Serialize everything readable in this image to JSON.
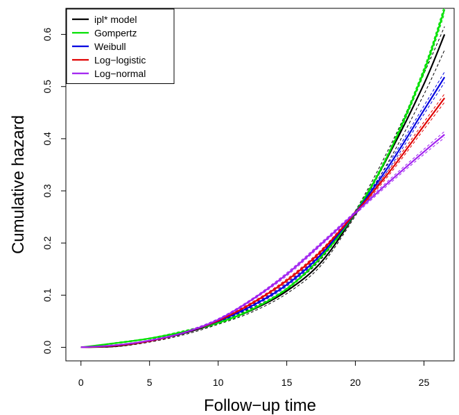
{
  "chart_data": {
    "type": "line",
    "title": "",
    "xlabel": "Follow−up time",
    "ylabel": "Cumulative hazard",
    "xlim": [
      -1.1,
      27.2
    ],
    "ylim": [
      -0.026,
      0.65
    ],
    "xticks": [
      0,
      5,
      10,
      15,
      20,
      25
    ],
    "yticks": [
      0.0,
      0.1,
      0.2,
      0.3,
      0.4,
      0.5,
      0.6
    ],
    "ytick_labels": [
      "0.0",
      "0.1",
      "0.2",
      "0.3",
      "0.4",
      "0.5",
      "0.6"
    ],
    "grid": false,
    "legend_position": "top-left",
    "x": [
      0,
      2.5,
      5,
      7.5,
      10,
      12.5,
      15,
      17.5,
      20,
      22.5,
      25,
      26.5
    ],
    "series": [
      {
        "name": "ipl* model",
        "color": "#000000",
        "values": [
          0.0,
          0.002,
          0.012,
          0.027,
          0.047,
          0.072,
          0.108,
          0.163,
          0.257,
          0.372,
          0.505,
          0.6
        ],
        "ci_low": [
          0.0,
          0.001,
          0.01,
          0.024,
          0.044,
          0.068,
          0.103,
          0.157,
          0.252,
          0.36,
          0.485,
          0.57
        ],
        "ci_high": [
          0.0,
          0.003,
          0.014,
          0.03,
          0.05,
          0.076,
          0.113,
          0.169,
          0.262,
          0.384,
          0.525,
          0.615
        ]
      },
      {
        "name": "Gompertz",
        "color": "#00e000",
        "values": [
          0.0,
          0.008,
          0.017,
          0.03,
          0.047,
          0.073,
          0.112,
          0.173,
          0.258,
          0.375,
          0.53,
          0.648
        ],
        "ci_low": [
          0.0,
          0.007,
          0.016,
          0.028,
          0.045,
          0.071,
          0.11,
          0.171,
          0.255,
          0.371,
          0.524,
          0.64
        ],
        "ci_high": [
          0.0,
          0.009,
          0.018,
          0.032,
          0.049,
          0.075,
          0.114,
          0.175,
          0.261,
          0.379,
          0.536,
          0.656
        ]
      },
      {
        "name": "Weibull",
        "color": "#0000e0",
        "values": [
          0.0,
          0.003,
          0.012,
          0.028,
          0.05,
          0.08,
          0.12,
          0.178,
          0.258,
          0.35,
          0.455,
          0.518
        ],
        "ci_low": [
          0.0,
          0.002,
          0.011,
          0.026,
          0.048,
          0.078,
          0.117,
          0.175,
          0.255,
          0.344,
          0.447,
          0.508
        ],
        "ci_high": [
          0.0,
          0.004,
          0.013,
          0.03,
          0.052,
          0.082,
          0.123,
          0.181,
          0.261,
          0.356,
          0.463,
          0.528
        ]
      },
      {
        "name": "Log−logistic",
        "color": "#e00000",
        "values": [
          0.0,
          0.003,
          0.012,
          0.028,
          0.051,
          0.085,
          0.128,
          0.184,
          0.258,
          0.337,
          0.425,
          0.478
        ],
        "ci_low": [
          0.0,
          0.002,
          0.011,
          0.026,
          0.049,
          0.083,
          0.125,
          0.181,
          0.255,
          0.332,
          0.418,
          0.47
        ],
        "ci_high": [
          0.0,
          0.004,
          0.013,
          0.03,
          0.053,
          0.087,
          0.131,
          0.187,
          0.261,
          0.342,
          0.432,
          0.486
        ]
      },
      {
        "name": "Log−normal",
        "color": "#a020f0",
        "values": [
          0.0,
          0.004,
          0.013,
          0.028,
          0.053,
          0.092,
          0.14,
          0.198,
          0.258,
          0.318,
          0.375,
          0.408
        ],
        "ci_low": [
          0.0,
          0.003,
          0.012,
          0.026,
          0.051,
          0.09,
          0.137,
          0.195,
          0.255,
          0.314,
          0.37,
          0.402
        ],
        "ci_high": [
          0.0,
          0.005,
          0.014,
          0.03,
          0.055,
          0.094,
          0.143,
          0.201,
          0.261,
          0.322,
          0.38,
          0.414
        ]
      }
    ]
  }
}
